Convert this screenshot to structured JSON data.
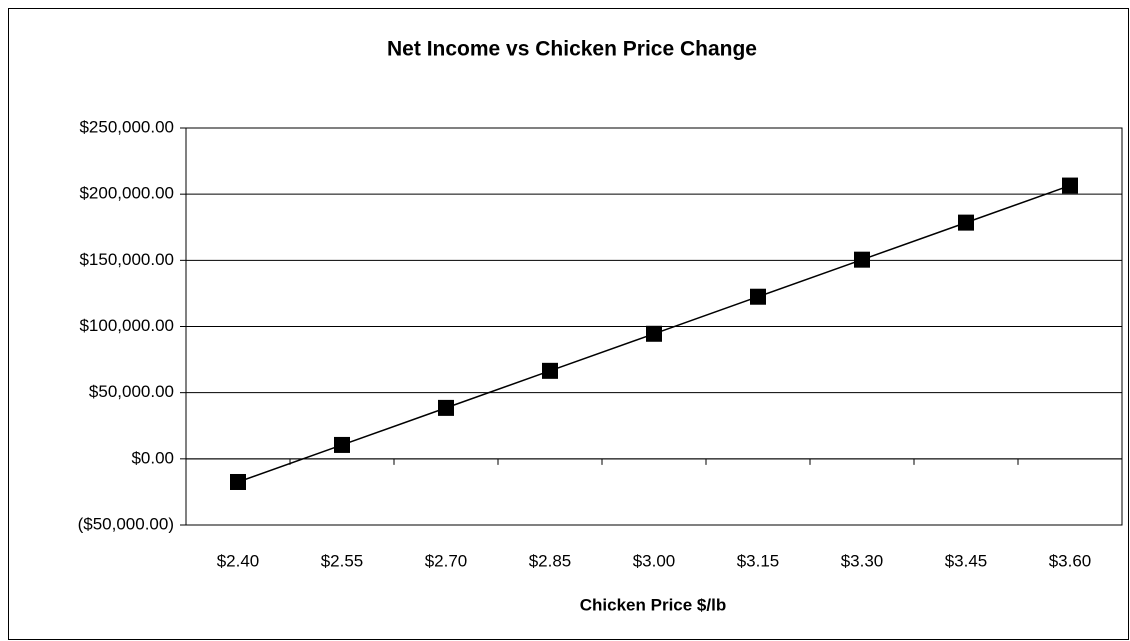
{
  "chart_data": {
    "type": "line",
    "title": "Net Income vs Chicken Price Change",
    "x_label": "Chicken Price $/lb",
    "categories": [
      "$2.40",
      "$2.55",
      "$2.70",
      "$2.85",
      "$3.00",
      "$3.15",
      "$3.30",
      "$3.45",
      "$3.60"
    ],
    "values": [
      -17500,
      10500,
      38500,
      66500,
      94500,
      122500,
      150500,
      178500,
      206500
    ],
    "color": "#000000",
    "marker": "square",
    "ylim": [
      -50000,
      250000
    ],
    "yticks": [
      {
        "value": -50000,
        "label": "($50,000.00)"
      },
      {
        "value": 0,
        "label": "$0.00"
      },
      {
        "value": 50000,
        "label": "$50,000.00"
      },
      {
        "value": 100000,
        "label": "$100,000.00"
      },
      {
        "value": 150000,
        "label": "$150,000.00"
      },
      {
        "value": 200000,
        "label": "$200,000.00"
      },
      {
        "value": 250000,
        "label": "$250,000.00"
      }
    ],
    "negative_label_color": "#ff0000",
    "grid": true
  }
}
